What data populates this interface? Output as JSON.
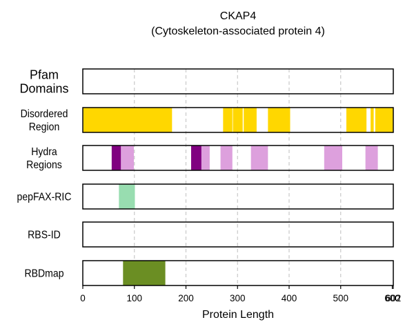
{
  "chart_data": {
    "type": "bar",
    "title_line1": "CKAP4",
    "title_line2": "(Cytoskeleton-associated protein 4)",
    "xlabel": "Protein Length",
    "xlim": [
      0,
      602
    ],
    "xticks": [
      0,
      100,
      200,
      300,
      400,
      500,
      602
    ],
    "xtick_labels": [
      "0",
      "100",
      "200",
      "300",
      "400",
      "500",
      "602"
    ],
    "extra_tick": {
      "value": 600,
      "label": "600"
    },
    "grid": "vertical dashed",
    "tracks": [
      {
        "label_lines": [
          "Pfam",
          "Domains"
        ],
        "segments": []
      },
      {
        "label_lines": [
          "Disordered",
          "Region"
        ],
        "color": "#FFD700",
        "segments": [
          [
            1,
            173
          ],
          [
            272,
            290
          ],
          [
            291,
            310
          ],
          [
            312,
            337
          ],
          [
            359,
            402
          ],
          [
            511,
            550
          ],
          [
            558,
            564
          ],
          [
            567,
            602
          ]
        ]
      },
      {
        "label_lines": [
          "Hydra",
          "Regions"
        ],
        "segments": [
          [
            56,
            74,
            "#800080"
          ],
          [
            74,
            99,
            "#DDA0DD"
          ],
          [
            210,
            230,
            "#800080"
          ],
          [
            230,
            246,
            "#DDA0DD"
          ],
          [
            267,
            290,
            "#DDA0DD"
          ],
          [
            326,
            359,
            "#DDA0DD"
          ],
          [
            468,
            503,
            "#DDA0DD"
          ],
          [
            548,
            572,
            "#DDA0DD"
          ]
        ]
      },
      {
        "label_lines": [
          "pepFAX-RIC"
        ],
        "color": "#98DDB0",
        "segments": [
          [
            70,
            101
          ]
        ]
      },
      {
        "label_lines": [
          "RBS-ID"
        ],
        "segments": []
      },
      {
        "label_lines": [
          "RBDmap"
        ],
        "color": "#6B8E23",
        "segments": [
          [
            78,
            160
          ]
        ]
      }
    ]
  }
}
